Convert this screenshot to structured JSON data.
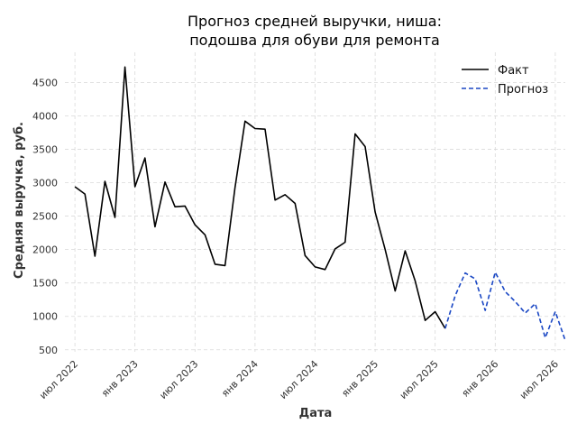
{
  "chart_data": {
    "type": "line",
    "title_lines": [
      "Прогноз средней выручки, ниша:",
      "подошва для обуви для ремонта"
    ],
    "xlabel": "Дата",
    "ylabel": "Средняя выручка, руб.",
    "ylim": [
      470,
      4950
    ],
    "xlim": [
      "2022-06-01",
      "2026-08-01"
    ],
    "grid": true,
    "legend_position": "top-right",
    "y_ticks": [
      500,
      1000,
      1500,
      2000,
      2500,
      3000,
      3500,
      4000,
      4500
    ],
    "x_ticks": [
      {
        "date": "2022-07-01",
        "label": "июл 2022"
      },
      {
        "date": "2023-01-01",
        "label": "янв 2023"
      },
      {
        "date": "2023-07-01",
        "label": "июл 2023"
      },
      {
        "date": "2024-01-01",
        "label": "янв 2024"
      },
      {
        "date": "2024-07-01",
        "label": "июл 2024"
      },
      {
        "date": "2025-01-01",
        "label": "янв 2025"
      },
      {
        "date": "2025-07-01",
        "label": "июл 2025"
      },
      {
        "date": "2026-01-01",
        "label": "янв 2026"
      },
      {
        "date": "2026-07-01",
        "label": "июл 2026"
      }
    ],
    "series": [
      {
        "name": "Факт",
        "color": "#000000",
        "style": "solid",
        "x": [
          "2022-07-01",
          "2022-08-01",
          "2022-09-01",
          "2022-10-01",
          "2022-11-01",
          "2022-12-01",
          "2023-01-01",
          "2023-02-01",
          "2023-03-01",
          "2023-04-01",
          "2023-05-01",
          "2023-06-01",
          "2023-07-01",
          "2023-08-01",
          "2023-09-01",
          "2023-10-01",
          "2023-11-01",
          "2023-12-01",
          "2024-01-01",
          "2024-02-01",
          "2024-03-01",
          "2024-04-01",
          "2024-05-01",
          "2024-06-01",
          "2024-07-01",
          "2024-08-01",
          "2024-09-01",
          "2024-10-01",
          "2024-11-01",
          "2024-12-01",
          "2025-01-01",
          "2025-02-01",
          "2025-03-01",
          "2025-04-01",
          "2025-05-01",
          "2025-06-01",
          "2025-07-01",
          "2025-08-01"
        ],
        "y": [
          2940,
          2830,
          1900,
          3020,
          2480,
          4730,
          2940,
          3370,
          2340,
          3010,
          2640,
          2650,
          2370,
          2220,
          1780,
          1760,
          2930,
          3920,
          3810,
          3800,
          2740,
          2820,
          2690,
          1910,
          1740,
          1700,
          2010,
          2110,
          3730,
          3540,
          2560,
          2000,
          1380,
          1980,
          1530,
          940,
          1070,
          820
        ]
      },
      {
        "name": "Прогноз",
        "color": "#1a47c4",
        "style": "dashed",
        "x": [
          "2025-08-01",
          "2025-09-01",
          "2025-10-01",
          "2025-11-01",
          "2025-12-01",
          "2026-01-01",
          "2026-02-01",
          "2026-03-01",
          "2026-04-01",
          "2026-05-01",
          "2026-06-01",
          "2026-07-01",
          "2026-08-01"
        ],
        "y": [
          820,
          1310,
          1650,
          1560,
          1090,
          1660,
          1370,
          1220,
          1050,
          1190,
          680,
          1070,
          640
        ]
      }
    ]
  }
}
